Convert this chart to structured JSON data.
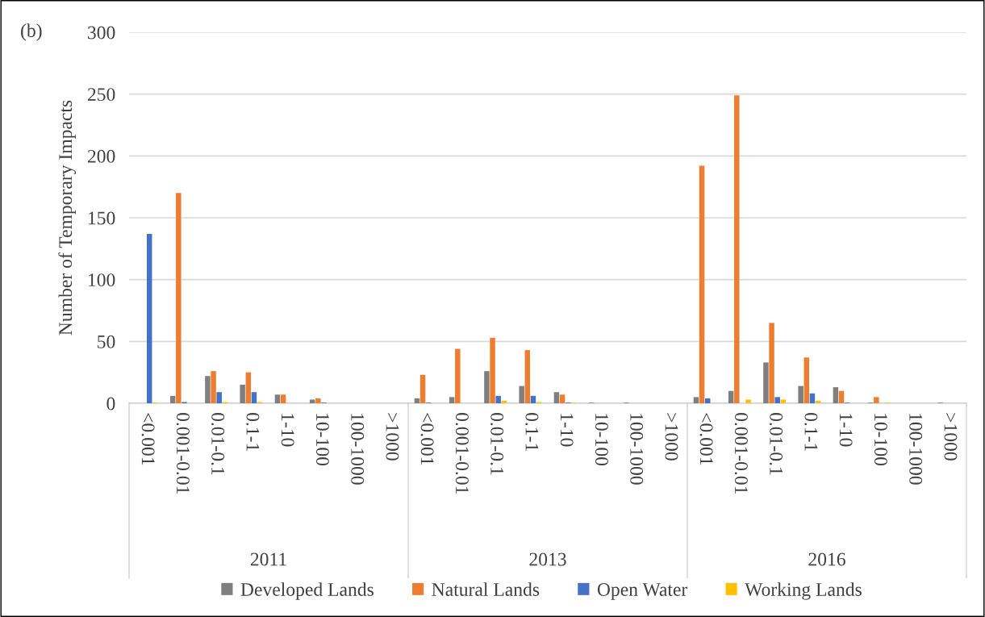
{
  "chart_data": {
    "type": "bar",
    "title": "(b)",
    "ylabel": "Number of Temporary Impacts",
    "categories": [
      "<0.001",
      "0.001-0.01",
      "0.01-0.1",
      "0.1-1",
      "1-10",
      "10-100",
      "100-1000",
      ">1000",
      "<0.001",
      "0.001-0.01",
      "0.01-0.1",
      "0.1-1",
      "1-10",
      "10-100",
      "100-1000",
      ">1000",
      "<0.001",
      "0.001-0.01",
      "0.01-0.1",
      "0.1-1",
      "1-10",
      "10-100",
      "100-1000",
      ">1000"
    ],
    "annotations": [
      "2011",
      "2013",
      "2016"
    ],
    "series": [
      {
        "name": "Developed Lands",
        "color": "#7f7f7f",
        "values": [
          0,
          6,
          22,
          15,
          7,
          3,
          0,
          0,
          4,
          5,
          26,
          14,
          9,
          0.5,
          0.5,
          0,
          5,
          10,
          33,
          14,
          13,
          0.5,
          0,
          0.5
        ]
      },
      {
        "name": "Natural Lands",
        "color": "#ed7d31",
        "values": [
          0,
          170,
          26,
          25,
          7,
          4,
          0,
          0,
          23,
          44,
          53,
          43,
          7,
          0,
          0,
          0,
          192,
          249,
          65,
          37,
          10,
          5,
          0,
          0
        ]
      },
      {
        "name": "Open Water",
        "color": "#4472c4",
        "values": [
          137,
          1,
          9,
          9,
          0,
          0.5,
          0,
          0,
          0.5,
          0,
          6,
          6,
          0.5,
          0,
          0,
          0,
          4,
          0,
          5,
          8,
          0.5,
          0,
          0,
          0
        ]
      },
      {
        "name": "Working Lands",
        "color": "#ffc000",
        "values": [
          0.5,
          0,
          1,
          1,
          0,
          0,
          0,
          0,
          0,
          0,
          2,
          1,
          0.5,
          0,
          0,
          0,
          0,
          3,
          3,
          2,
          0,
          0.5,
          0,
          0
        ]
      }
    ],
    "ylim": [
      0,
      300
    ],
    "yticks": [
      0,
      50,
      100,
      150,
      200,
      250,
      300
    ],
    "grid": "y",
    "legend": "bottom"
  }
}
